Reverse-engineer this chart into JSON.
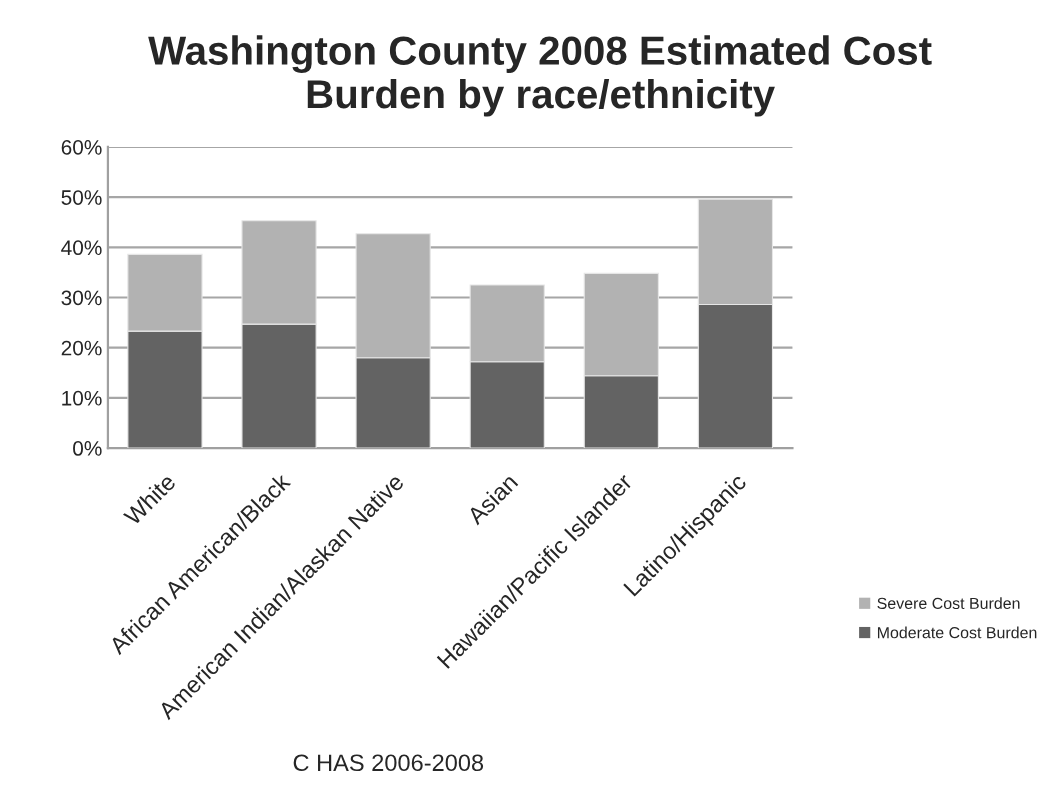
{
  "chart_data": {
    "type": "bar",
    "title": "Washington County 2008 Estimated Cost Burden by race/ethnicity",
    "categories": [
      "White",
      "African American/Black",
      "American Indian/Alaskan Native",
      "Asian",
      "Hawaiian/Pacific Islander",
      "Latino/Hispanic"
    ],
    "series": [
      {
        "name": "Moderate Cost Burden",
        "color": "#636363",
        "values": [
          23.3,
          24.7,
          18.0,
          17.2,
          14.4,
          28.6
        ]
      },
      {
        "name": "Severe Cost Burden",
        "color": "#b2b2b2",
        "values": [
          15.3,
          20.6,
          24.7,
          15.3,
          20.4,
          21.0
        ]
      }
    ],
    "stacked": true,
    "ylim": [
      0,
      60
    ],
    "yticks": [
      {
        "value": 0,
        "label": "0%"
      },
      {
        "value": 10,
        "label": "10%"
      },
      {
        "value": 20,
        "label": "20%"
      },
      {
        "value": 30,
        "label": "30%"
      },
      {
        "value": 40,
        "label": "40%"
      },
      {
        "value": 50,
        "label": "50%"
      },
      {
        "value": 60,
        "label": "60%"
      }
    ],
    "grid": "y",
    "legend": "right",
    "annotations": [
      "C HAS 2006-2008"
    ]
  }
}
